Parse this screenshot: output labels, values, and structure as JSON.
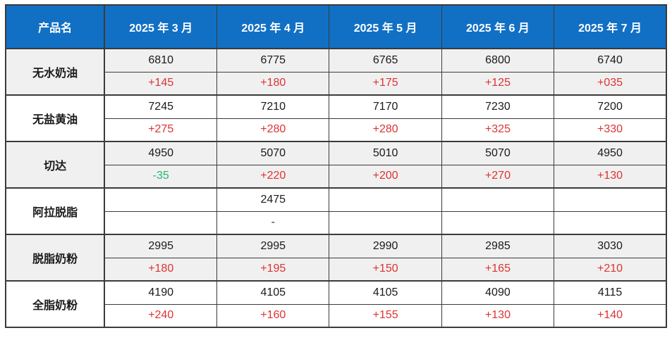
{
  "table": {
    "title": "dairy-monthly-price-table",
    "header": {
      "product": "产品名",
      "months": [
        "2025 年 3 月",
        "2025 年 4 月",
        "2025 年 5 月",
        "2025 年 6 月",
        "2025 年 7 月"
      ]
    },
    "rows": [
      {
        "name": "无水奶油",
        "prices": [
          "6810",
          "6775",
          "6765",
          "6800",
          "6740"
        ],
        "changes": [
          "+145",
          "+180",
          "+175",
          "+125",
          "+035"
        ],
        "tones": [
          "up",
          "up",
          "up",
          "up",
          "up"
        ]
      },
      {
        "name": "无盐黄油",
        "prices": [
          "7245",
          "7210",
          "7170",
          "7230",
          "7200"
        ],
        "changes": [
          "+275",
          "+280",
          "+280",
          "+325",
          "+330"
        ],
        "tones": [
          "up",
          "up",
          "up",
          "up",
          "up"
        ]
      },
      {
        "name": "切达",
        "prices": [
          "4950",
          "5070",
          "5010",
          "5070",
          "4950"
        ],
        "changes": [
          "-35",
          "+220",
          "+200",
          "+270",
          "+130"
        ],
        "tones": [
          "down",
          "up",
          "up",
          "up",
          "up"
        ]
      },
      {
        "name": "阿拉脱脂",
        "prices": [
          "",
          "2475",
          "",
          "",
          ""
        ],
        "changes": [
          "",
          "-",
          "",
          "",
          ""
        ],
        "tones": [
          "",
          "flat",
          "",
          "",
          ""
        ]
      },
      {
        "name": "脱脂奶粉",
        "prices": [
          "2995",
          "2995",
          "2990",
          "2985",
          "3030"
        ],
        "changes": [
          "+180",
          "+195",
          "+150",
          "+165",
          "+210"
        ],
        "tones": [
          "up",
          "up",
          "up",
          "up",
          "up"
        ]
      },
      {
        "name": "全脂奶粉",
        "prices": [
          "4190",
          "4105",
          "4105",
          "4090",
          "4115"
        ],
        "changes": [
          "+240",
          "+160",
          "+155",
          "+130",
          "+140"
        ],
        "tones": [
          "up",
          "up",
          "up",
          "up",
          "up"
        ]
      }
    ],
    "colors": {
      "header_bg": "#1170c4",
      "header_text": "#ffffff",
      "row_bg": "#ffffff",
      "row_alt_bg": "#f0f0f0",
      "positive_change": "#dd3333",
      "negative_change": "#27b573",
      "neutral_change": "#333333",
      "value_text": "#1a1a1a",
      "border": "#3b3b3b"
    }
  }
}
